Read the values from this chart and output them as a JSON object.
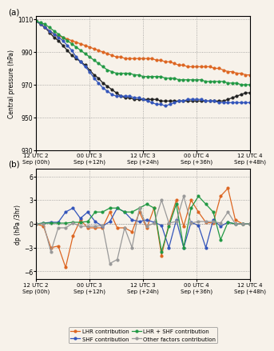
{
  "panel_a": {
    "title": "(a)",
    "ylabel": "Central pressure (hPa)",
    "ylim": [
      930,
      1012
    ],
    "yticks": [
      930,
      950,
      970,
      990,
      1010
    ],
    "xtick_labels": [
      "12 UTC 2\nSep (00h)",
      "00 UTC 3\nSep (+12h)",
      "12 UTC 3\nSep (+24h)",
      "00 UTC 4\nSep (+36h)",
      "12 UTC 4\nSep (+48h)"
    ],
    "CNTL": [
      1009,
      1007,
      1005,
      1002,
      999,
      997,
      994,
      991,
      988,
      986,
      984,
      982,
      979,
      976,
      974,
      971,
      969,
      967,
      965,
      963,
      962,
      962,
      961,
      961,
      961,
      961,
      961,
      961,
      960,
      960,
      960,
      960,
      960,
      960,
      960,
      960,
      960,
      960,
      960,
      960,
      960,
      960,
      960,
      961,
      962,
      963,
      964,
      965,
      965
    ],
    "DRY": [
      1009,
      1007,
      1005,
      1003,
      1001,
      1000,
      999,
      998,
      997,
      996,
      995,
      994,
      993,
      992,
      991,
      990,
      989,
      988,
      987,
      987,
      986,
      986,
      986,
      986,
      986,
      986,
      986,
      985,
      985,
      984,
      984,
      983,
      982,
      982,
      981,
      981,
      981,
      981,
      981,
      981,
      980,
      980,
      979,
      978,
      978,
      977,
      977,
      976,
      976
    ],
    "NOFLX": [
      1009,
      1007,
      1005,
      1003,
      1001,
      999,
      997,
      994,
      991,
      987,
      984,
      981,
      978,
      974,
      971,
      968,
      966,
      964,
      963,
      963,
      963,
      963,
      962,
      962,
      961,
      960,
      959,
      958,
      958,
      957,
      958,
      959,
      960,
      960,
      961,
      961,
      961,
      961,
      960,
      960,
      960,
      959,
      959,
      959,
      959,
      959,
      959,
      959,
      959
    ],
    "DNOFLX": [
      1009,
      1008,
      1007,
      1005,
      1003,
      1001,
      999,
      997,
      995,
      993,
      991,
      989,
      987,
      985,
      983,
      981,
      979,
      978,
      977,
      977,
      977,
      977,
      976,
      976,
      975,
      975,
      975,
      975,
      975,
      974,
      974,
      974,
      973,
      973,
      973,
      973,
      973,
      973,
      972,
      972,
      972,
      972,
      972,
      971,
      971,
      971,
      970,
      970,
      970
    ],
    "CNTL_color": "#222222",
    "DRY_color": "#dd6622",
    "NOFLX_color": "#3355bb",
    "DNOFLX_color": "#229944",
    "marker": "o",
    "markersize": 2.0,
    "linewidth": 0.9
  },
  "panel_b": {
    "title": "(b)",
    "ylabel": "dp (hPa /3hr)",
    "ylim": [
      -7,
      7
    ],
    "yticks": [
      -6.0,
      -3.0,
      0.0,
      3.0,
      6.0
    ],
    "xtick_labels": [
      "12 UTC 2\nSep (00h)",
      "00 UTC 3\nSep (+12h)",
      "12 UTC 3\nSep (+24h)",
      "00 UTC 4\nSep (+36h)",
      "12 UTC 4\nSep (+48h)"
    ],
    "LHR": [
      0.0,
      -0.3,
      -3.0,
      -2.8,
      -5.5,
      -1.5,
      0.5,
      -0.5,
      -0.5,
      -0.5,
      1.5,
      -0.5,
      -0.5,
      -1.0,
      1.5,
      -0.5,
      2.0,
      -4.0,
      0.0,
      3.0,
      -0.3,
      3.0,
      1.5,
      0.2,
      0.1,
      3.5,
      4.5,
      0.5,
      0.0,
      0.0
    ],
    "SHF": [
      0.0,
      0.1,
      0.2,
      0.2,
      1.5,
      2.0,
      0.7,
      1.5,
      0.3,
      -0.3,
      0.3,
      2.0,
      1.5,
      0.5,
      0.3,
      0.5,
      0.2,
      -0.2,
      -3.0,
      0.5,
      -3.0,
      0.2,
      -0.2,
      -3.0,
      0.5,
      -0.3,
      0.2,
      0.0,
      0.0,
      0.0
    ],
    "LHR_SHF": [
      0.0,
      0.1,
      0.1,
      0.1,
      0.1,
      0.2,
      0.2,
      0.3,
      1.5,
      1.5,
      2.0,
      2.0,
      1.5,
      1.5,
      2.0,
      2.5,
      2.0,
      -3.5,
      -0.3,
      2.5,
      -3.0,
      2.0,
      3.5,
      2.5,
      1.5,
      -2.0,
      0.2,
      0.0,
      0.0,
      0.0
    ],
    "OTHER": [
      0.0,
      0.0,
      -3.5,
      -0.5,
      -0.5,
      0.1,
      -0.3,
      -0.3,
      -0.3,
      -0.2,
      -5.0,
      -4.5,
      -0.5,
      -3.0,
      2.0,
      -0.3,
      0.1,
      3.0,
      0.1,
      0.3,
      3.5,
      0.1,
      0.3,
      0.3,
      0.3,
      0.1,
      1.5,
      0.0,
      0.0,
      0.0
    ],
    "LHR_color": "#dd6622",
    "SHF_color": "#3355bb",
    "LHR_SHF_color": "#229944",
    "OTHER_color": "#999999",
    "marker": "o",
    "markersize": 2.0,
    "linewidth": 0.9
  },
  "background_color": "#f7f2ea"
}
